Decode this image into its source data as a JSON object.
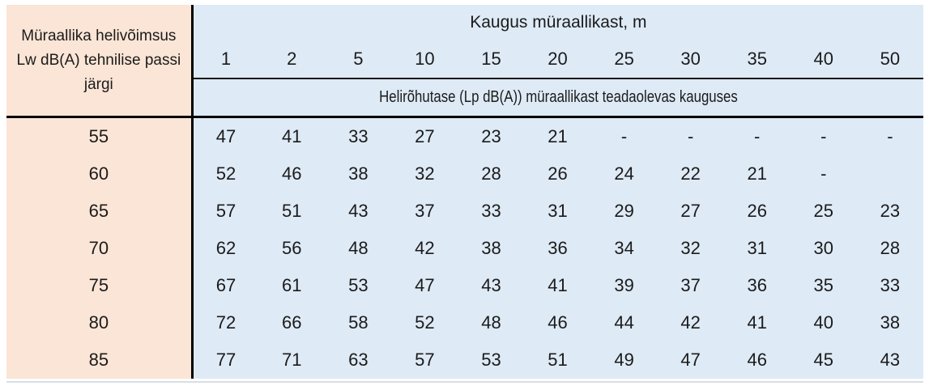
{
  "table": {
    "corner_header_lines": [
      "Müraallika helivõimsus",
      "Lw dB(A) tehnilise passi",
      "järgi"
    ],
    "distance_title": "Kaugus müraallikast, m",
    "subtitle": "Helirõhutase (Lp dB(A)) müraallikast teadaolevas kauguses",
    "distances": [
      "1",
      "2",
      "5",
      "10",
      "15",
      "20",
      "25",
      "30",
      "35",
      "40",
      "50"
    ],
    "rows": [
      {
        "lw": "55",
        "values": [
          "47",
          "41",
          "33",
          "27",
          "23",
          "21",
          "-",
          "-",
          "-",
          "-",
          "-"
        ]
      },
      {
        "lw": "60",
        "values": [
          "52",
          "46",
          "38",
          "32",
          "28",
          "26",
          "24",
          "22",
          "21",
          "-",
          ""
        ]
      },
      {
        "lw": "65",
        "values": [
          "57",
          "51",
          "43",
          "37",
          "33",
          "31",
          "29",
          "27",
          "26",
          "25",
          "23"
        ]
      },
      {
        "lw": "70",
        "values": [
          "62",
          "56",
          "48",
          "42",
          "38",
          "36",
          "34",
          "32",
          "31",
          "30",
          "28"
        ]
      },
      {
        "lw": "75",
        "values": [
          "67",
          "61",
          "53",
          "47",
          "43",
          "41",
          "39",
          "37",
          "36",
          "35",
          "33"
        ]
      },
      {
        "lw": "80",
        "values": [
          "72",
          "66",
          "58",
          "52",
          "48",
          "46",
          "44",
          "42",
          "41",
          "40",
          "38"
        ]
      },
      {
        "lw": "85",
        "values": [
          "77",
          "71",
          "63",
          "57",
          "53",
          "51",
          "49",
          "47",
          "46",
          "45",
          "43"
        ]
      }
    ],
    "colors": {
      "left_column_bg": "#FBE5D6",
      "data_area_bg": "#DEEAF6",
      "grid_dark": "#000000",
      "text": "#1b1b1b"
    }
  }
}
